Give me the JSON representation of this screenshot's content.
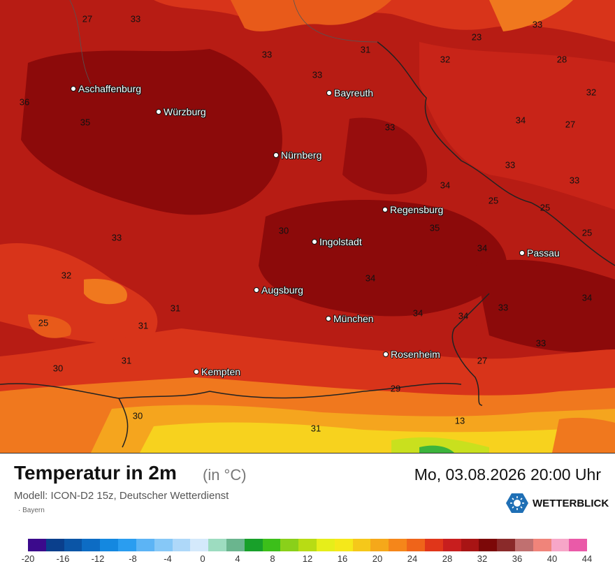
{
  "map": {
    "cities": [
      {
        "name": "Aschaffenburg"
      },
      {
        "name": "Würzburg"
      },
      {
        "name": "Bayreuth"
      },
      {
        "name": "Nürnberg"
      },
      {
        "name": "Regensburg"
      },
      {
        "name": "Ingolstadt"
      },
      {
        "name": "Passau"
      },
      {
        "name": "Augsburg"
      },
      {
        "name": "München"
      },
      {
        "name": "Rosenheim"
      },
      {
        "name": "Kempten"
      }
    ],
    "temperatures": [
      "27",
      "33",
      "33",
      "31",
      "33",
      "23",
      "33",
      "32",
      "28",
      "32",
      "36",
      "35",
      "34",
      "27",
      "33",
      "33",
      "34",
      "33",
      "25",
      "25",
      "35",
      "25",
      "30",
      "33",
      "34",
      "34",
      "32",
      "34",
      "31",
      "34",
      "34",
      "25",
      "31",
      "33",
      "33",
      "31",
      "30",
      "27",
      "29",
      "30",
      "31",
      "13"
    ],
    "colors": {
      "deep": "#8c0a0a",
      "base": "#b71c14",
      "warm": "#d8341a",
      "orange": "#f0781e",
      "amber": "#f5a51e",
      "yellow": "#f7d21e",
      "lime": "#c9e01e",
      "green": "#3cb43c"
    }
  },
  "header": {
    "title": "Temperatur in 2m",
    "unit": "(in °C)",
    "datetime": "Mo, 03.08.2026 20:00 Uhr",
    "model": "Modell: ICON-D2 15z, Deutscher Wetterdienst",
    "region": "Bayern"
  },
  "brand": {
    "name": "WETTERBLICK",
    "icon": "wetterblick-logo-icon",
    "color": "#1f6fb5"
  },
  "legend": {
    "ticks": [
      "-20",
      "-16",
      "-12",
      "-8",
      "-4",
      "0",
      "4",
      "8",
      "12",
      "16",
      "20",
      "24",
      "28",
      "32",
      "36",
      "40",
      "44"
    ],
    "colors": [
      "#3b0a8c",
      "#0a3f8c",
      "#0b55a6",
      "#0d6cc4",
      "#1488e0",
      "#2a9df0",
      "#5cb4f5",
      "#86c8f7",
      "#aed8f9",
      "#d4e9fb",
      "#9ddcc0",
      "#6ab58e",
      "#18a02a",
      "#3cbf1a",
      "#8ad01a",
      "#b8dc14",
      "#e6ee1a",
      "#f5e81a",
      "#f5c81a",
      "#f5a81a",
      "#f5861a",
      "#ef641a",
      "#e0361a",
      "#c81e1e",
      "#a81414",
      "#7c0808",
      "#8a2a2a",
      "#c07070",
      "#f0847a",
      "#f7a6c8",
      "#ea5aa8"
    ]
  }
}
